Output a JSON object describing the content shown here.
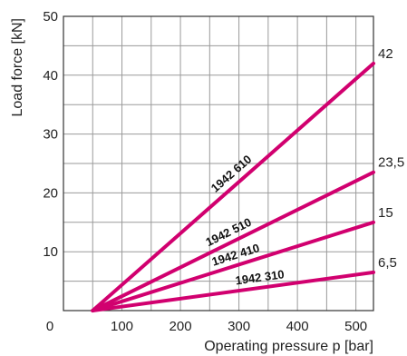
{
  "chart_data": {
    "type": "line",
    "xlabel": "Operating pressure p [bar]",
    "ylabel": "Load force [kN]",
    "xlim": [
      0,
      530
    ],
    "ylim": [
      0,
      50
    ],
    "x_ticks": [
      0,
      100,
      200,
      300,
      400,
      500
    ],
    "y_ticks": [
      10,
      20,
      30,
      40,
      50
    ],
    "grid": true,
    "line_color": "#d1006f",
    "series": [
      {
        "name": "1942 610",
        "x": [
          50,
          530
        ],
        "y": [
          0,
          42
        ],
        "end_label": "42"
      },
      {
        "name": "1942 510",
        "x": [
          50,
          530
        ],
        "y": [
          0,
          23.5
        ],
        "end_label": "23,5"
      },
      {
        "name": "1942 410",
        "x": [
          50,
          530
        ],
        "y": [
          0,
          15
        ],
        "end_label": "15"
      },
      {
        "name": "1942 310",
        "x": [
          50,
          530
        ],
        "y": [
          0,
          6.5
        ],
        "end_label": "6,5"
      }
    ]
  }
}
